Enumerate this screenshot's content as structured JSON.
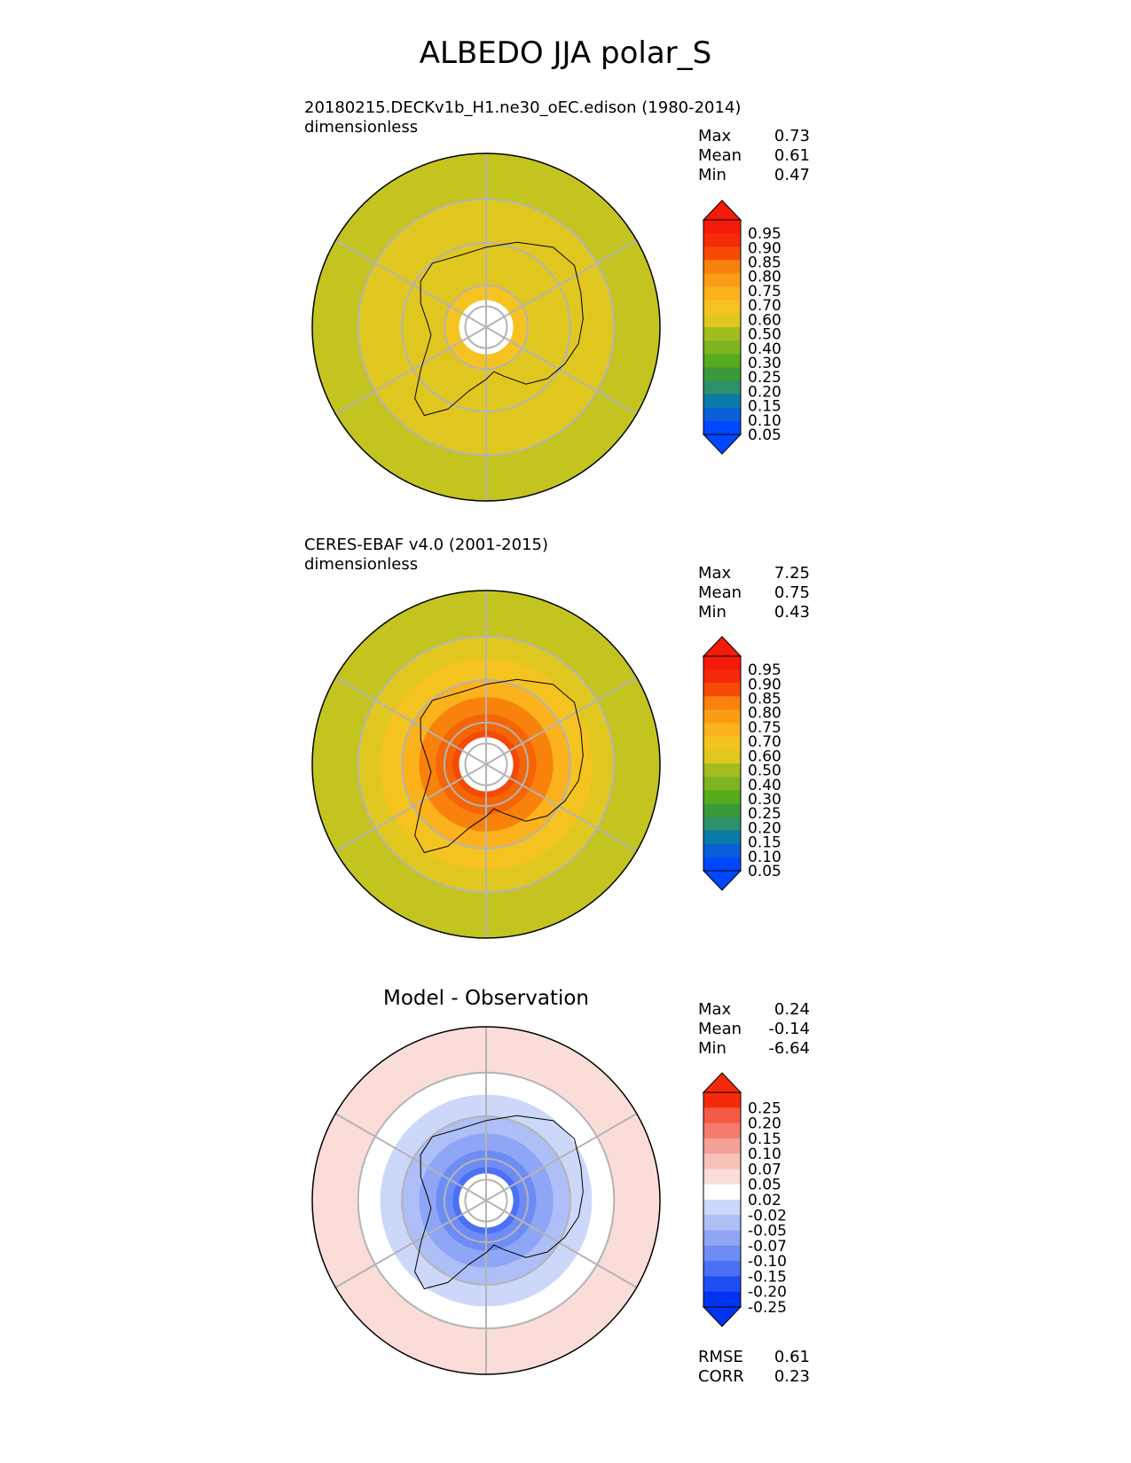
{
  "figure": {
    "title": "ALBEDO JJA polar_S"
  },
  "colors": {
    "albedo_colormap": [
      "#0047ff",
      "#0a5fd9",
      "#0a7aa8",
      "#16858c",
      "#2e8f6b",
      "#3a9a3a",
      "#58ab1c",
      "#7fb420",
      "#a3bd1f",
      "#c3c41f",
      "#e0c720",
      "#f5c320",
      "#fbb21c",
      "#fb9d14",
      "#f8820c",
      "#f56505",
      "#f54a05",
      "#f52a0a",
      "#f51a0a"
    ],
    "diff_colormap": [
      "#0033ee",
      "#1e4ff5",
      "#4a70f5",
      "#6d8cf5",
      "#8ea6f5",
      "#aebef7",
      "#cdd7fa",
      "#ffffff",
      "#fadcd8",
      "#f8c2b8",
      "#f5a296",
      "#f47c6c",
      "#f45a45",
      "#f52a0a"
    ]
  },
  "chart_data": [
    {
      "type": "heatmap",
      "panel": "test",
      "title": "20180215.DECKv1b_H1.ne30_oEC.edison (1980-2014)",
      "units": "dimensionless",
      "projection": "south-polar-stereographic",
      "stats": {
        "max": "0.73",
        "mean": "0.61",
        "min": "0.47"
      },
      "colorbar_ticks": [
        "0.95",
        "0.90",
        "0.85",
        "0.80",
        "0.75",
        "0.70",
        "0.60",
        "0.50",
        "0.40",
        "0.30",
        "0.25",
        "0.20",
        "0.15",
        "0.10",
        "0.05"
      ],
      "colorbar_extend": "both",
      "rings": [
        {
          "lat": -90,
          "value": null
        },
        {
          "lat": -85,
          "value": 0.72
        },
        {
          "lat": -80,
          "value": 0.7
        },
        {
          "lat": -75,
          "value": 0.68
        },
        {
          "lat": -70,
          "value": 0.66
        },
        {
          "lat": -65,
          "value": 0.64
        },
        {
          "lat": -60,
          "value": 0.6
        },
        {
          "lat": -55,
          "value": 0.55
        }
      ]
    },
    {
      "type": "heatmap",
      "panel": "reference",
      "title": "CERES-EBAF v4.0 (2001-2015)",
      "units": "dimensionless",
      "projection": "south-polar-stereographic",
      "stats": {
        "max": "7.25",
        "mean": "0.75",
        "min": "0.43"
      },
      "colorbar_ticks": [
        "0.95",
        "0.90",
        "0.85",
        "0.80",
        "0.75",
        "0.70",
        "0.60",
        "0.50",
        "0.40",
        "0.30",
        "0.25",
        "0.20",
        "0.15",
        "0.10",
        "0.05"
      ],
      "colorbar_extend": "both",
      "rings": [
        {
          "lat": -90,
          "value": null
        },
        {
          "lat": -85,
          "value": 0.95
        },
        {
          "lat": -82,
          "value": 0.9
        },
        {
          "lat": -78,
          "value": 0.85
        },
        {
          "lat": -74,
          "value": 0.8
        },
        {
          "lat": -70,
          "value": 0.75
        },
        {
          "lat": -65,
          "value": 0.7
        },
        {
          "lat": -60,
          "value": 0.62
        },
        {
          "lat": -55,
          "value": 0.55
        }
      ]
    },
    {
      "type": "heatmap",
      "panel": "difference",
      "title": "Model - Observation",
      "projection": "south-polar-stereographic",
      "stats": {
        "max": "0.24",
        "mean": "-0.14",
        "min": "-6.64"
      },
      "metrics": {
        "rmse": "0.61",
        "corr": "0.23"
      },
      "colorbar_ticks": [
        "0.25",
        "0.20",
        "0.15",
        "0.10",
        "0.07",
        "0.05",
        "0.02",
        "-0.02",
        "-0.05",
        "-0.07",
        "-0.10",
        "-0.15",
        "-0.20",
        "-0.25"
      ],
      "colorbar_extend": "both",
      "rings": [
        {
          "lat": -90,
          "value": null
        },
        {
          "lat": -85,
          "value": -0.25
        },
        {
          "lat": -82,
          "value": -0.2
        },
        {
          "lat": -78,
          "value": -0.15
        },
        {
          "lat": -74,
          "value": -0.1
        },
        {
          "lat": -70,
          "value": -0.07
        },
        {
          "lat": -65,
          "value": -0.04
        },
        {
          "lat": -60,
          "value": 0.0
        },
        {
          "lat": -55,
          "value": 0.03
        }
      ]
    }
  ],
  "stat_labels": {
    "max": "Max",
    "mean": "Mean",
    "min": "Min",
    "rmse": "RMSE",
    "corr": "CORR"
  }
}
